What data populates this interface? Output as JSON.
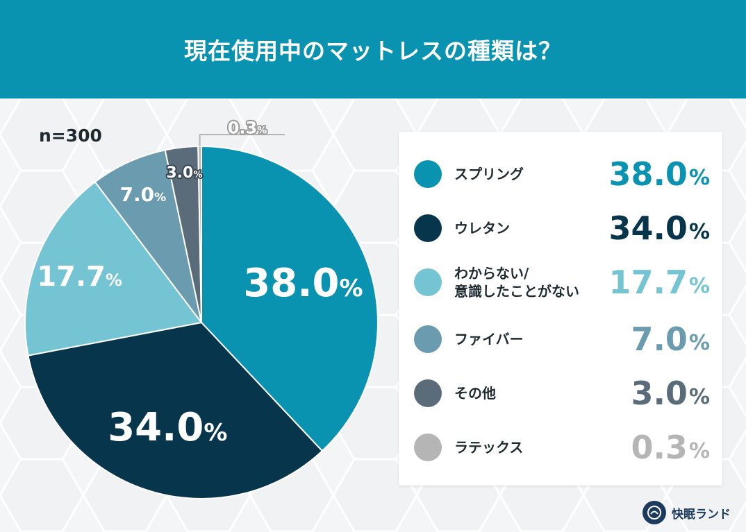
{
  "header": {
    "title": "現在使用中のマットレスの種類は？"
  },
  "sample_label": "n=300",
  "percent_sign": "%",
  "brand": {
    "name": "快眠ランド"
  },
  "colors": {
    "header": "#0a93b1",
    "spring": "#0a93b1",
    "urethane": "#06354c",
    "unknown": "#74c4d3",
    "fiber": "#6a9baf",
    "other": "#5a6c79",
    "latex": "#b5b5b5"
  },
  "chart_data": {
    "type": "pie",
    "title": "現在使用中のマットレスの種類は？",
    "slices": [
      {
        "key": "spring",
        "label_lines": [
          "スプリング"
        ],
        "value": 38.0,
        "value_text": "38.0",
        "color": "#0a93b1"
      },
      {
        "key": "urethane",
        "label_lines": [
          "ウレタン"
        ],
        "value": 34.0,
        "value_text": "34.0",
        "color": "#06354c"
      },
      {
        "key": "unknown",
        "label_lines": [
          "わからない/",
          "意識したことがない"
        ],
        "value": 17.7,
        "value_text": "17.7",
        "color": "#74c4d3"
      },
      {
        "key": "fiber",
        "label_lines": [
          "ファイバー"
        ],
        "value": 7.0,
        "value_text": "7.0",
        "color": "#6a9baf"
      },
      {
        "key": "other",
        "label_lines": [
          "その他"
        ],
        "value": 3.0,
        "value_text": "3.0",
        "color": "#5a6c79"
      },
      {
        "key": "latex",
        "label_lines": [
          "ラテックス"
        ],
        "value": 0.3,
        "value_text": "0.3",
        "color": "#b5b5b5"
      }
    ],
    "legend_position": "right"
  }
}
